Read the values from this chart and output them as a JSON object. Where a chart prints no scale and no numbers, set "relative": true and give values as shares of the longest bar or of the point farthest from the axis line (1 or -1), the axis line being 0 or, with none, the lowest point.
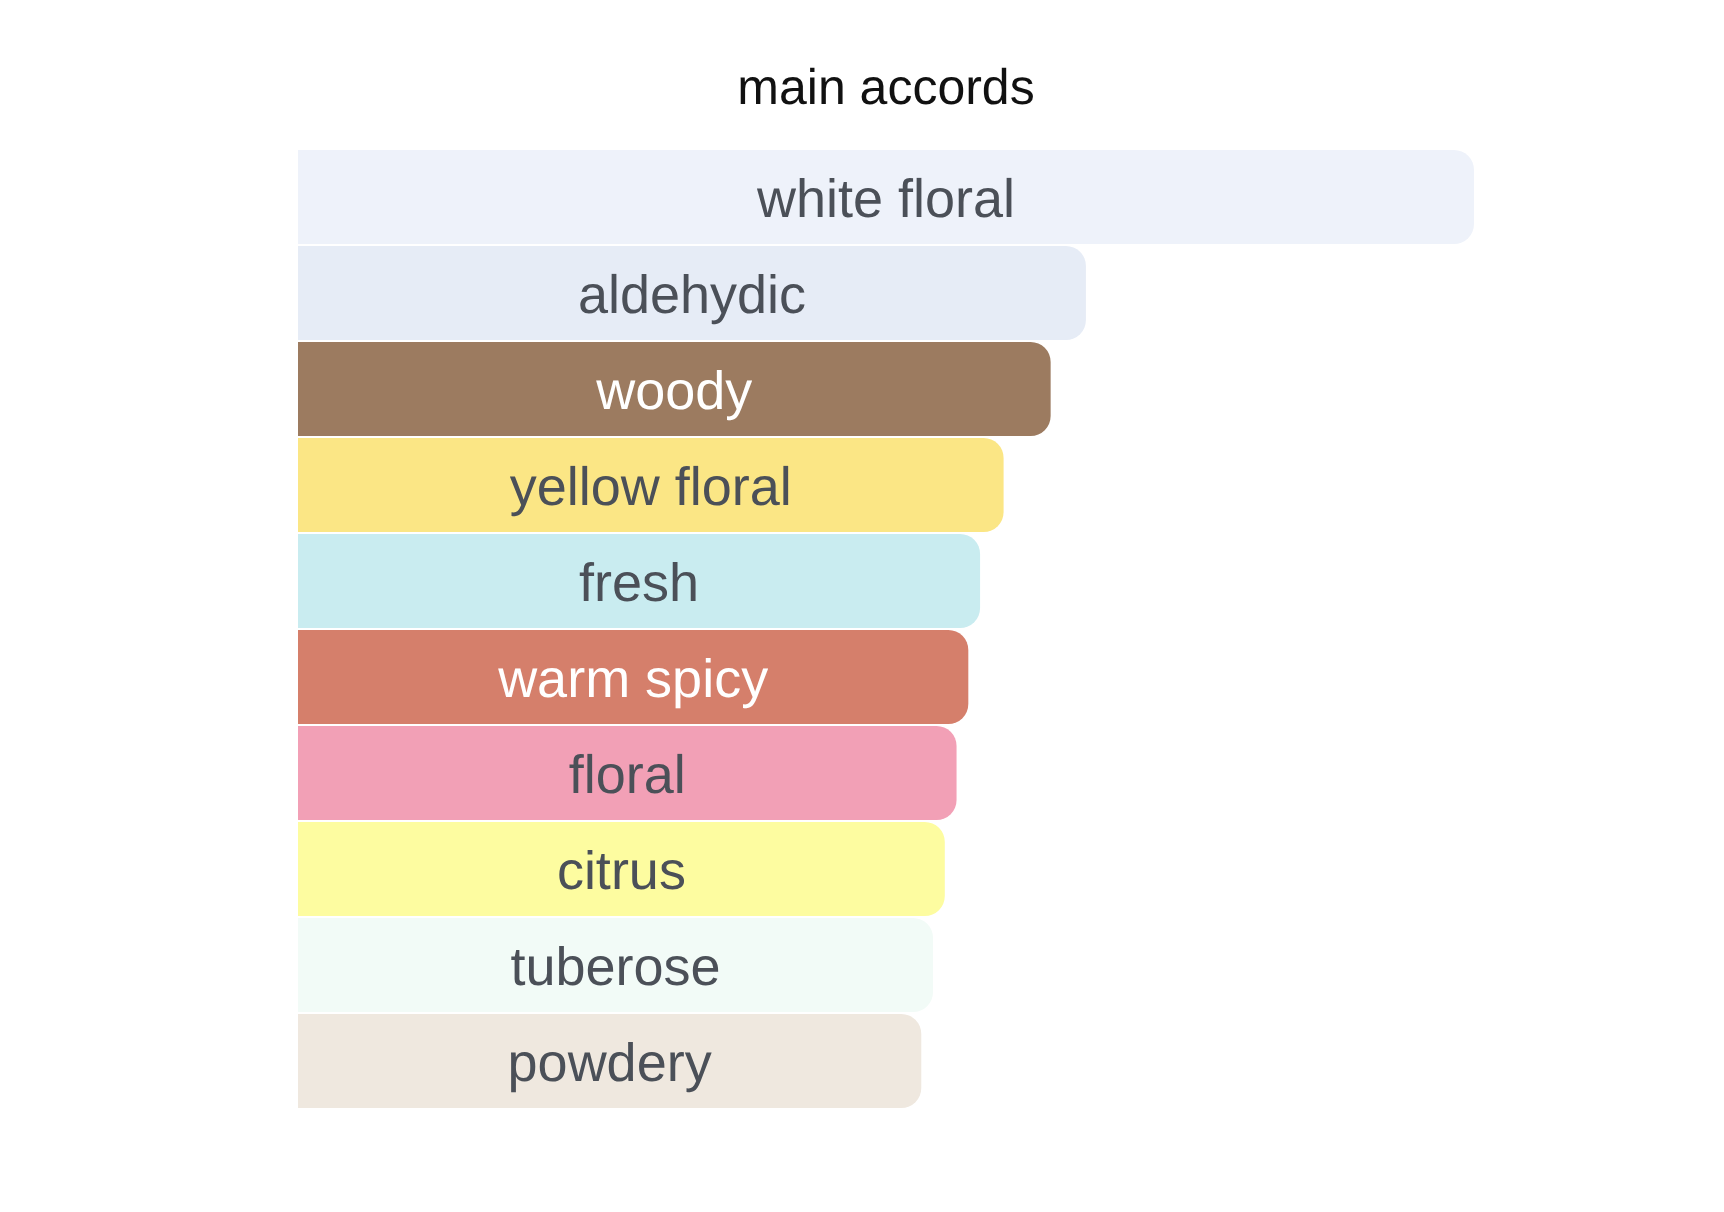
{
  "chart_data": {
    "type": "bar",
    "orientation": "horizontal",
    "relative": true,
    "title": "main accords",
    "categories": [
      "white floral",
      "aldehydic",
      "woody",
      "yellow floral",
      "fresh",
      "warm spicy",
      "floral",
      "citrus",
      "tuberose",
      "powdery"
    ],
    "values": [
      1,
      0.67,
      0.64,
      0.6,
      0.58,
      0.57,
      0.56,
      0.55,
      0.54,
      0.53
    ],
    "colors": [
      "#eef2fa",
      "#e6ecf6",
      "#9c7b60",
      "#fbe685",
      "#c9ecf0",
      "#d57f6b",
      "#f2a0b6",
      "#fdfca0",
      "#f2fbf7",
      "#efe8df"
    ]
  }
}
